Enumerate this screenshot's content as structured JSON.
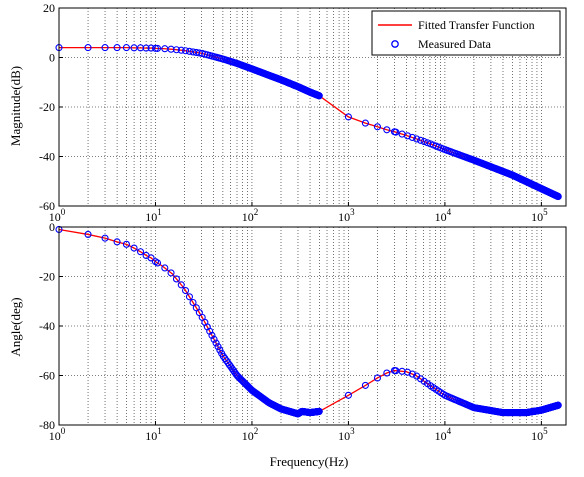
{
  "chart_data": [
    {
      "type": "line",
      "ylabel": "Magnitude(dB)",
      "xlabel": "",
      "xscale": "log",
      "xlim": [
        1,
        180000
      ],
      "ylim": [
        -60,
        20
      ],
      "yticks": [
        "20",
        "0",
        "-20",
        "-40",
        "-60"
      ],
      "xticks": [
        {
          "base": "10",
          "exp": "0"
        },
        {
          "base": "10",
          "exp": "1"
        },
        {
          "base": "10",
          "exp": "2"
        },
        {
          "base": "10",
          "exp": "3"
        },
        {
          "base": "10",
          "exp": "4"
        },
        {
          "base": "10",
          "exp": "5"
        }
      ],
      "grid": true,
      "legend_position": "top-right",
      "series": [
        {
          "name": "Fitted Transfer Function",
          "style": "line",
          "color": "#ff0000"
        },
        {
          "name": "Measured Data",
          "style": "markers",
          "color": "#0000ff"
        }
      ],
      "points": [
        [
          1,
          4
        ],
        [
          2,
          4
        ],
        [
          3,
          4
        ],
        [
          4,
          4
        ],
        [
          5,
          4
        ],
        [
          6,
          3.9
        ],
        [
          7,
          3.9
        ],
        [
          8,
          3.8
        ],
        [
          9,
          3.8
        ],
        [
          10,
          3.7
        ],
        [
          12,
          3.6
        ],
        [
          15,
          3.3
        ],
        [
          20,
          2.8
        ],
        [
          30,
          1.7
        ],
        [
          50,
          -0.6
        ],
        [
          70,
          -2.4
        ],
        [
          100,
          -4.6
        ],
        [
          150,
          -7.2
        ],
        [
          200,
          -9.0
        ],
        [
          300,
          -11.8
        ],
        [
          400,
          -14.0
        ],
        [
          500,
          -15.5
        ],
        [
          1000,
          -24
        ],
        [
          1500,
          -26.5
        ],
        [
          2000,
          -28
        ],
        [
          2500,
          -29.2
        ],
        [
          3000,
          -30
        ],
        [
          4000,
          -31.5
        ],
        [
          5000,
          -32.8
        ],
        [
          7000,
          -34.8
        ],
        [
          10000,
          -37.2
        ],
        [
          20000,
          -41.5
        ],
        [
          50000,
          -47.5
        ],
        [
          100000,
          -53
        ],
        [
          150000,
          -56.2
        ]
      ]
    },
    {
      "type": "line",
      "ylabel": "Angle(deg)",
      "xlabel": "Frequency(Hz)",
      "xscale": "log",
      "xlim": [
        1,
        180000
      ],
      "ylim": [
        -80,
        0
      ],
      "yticks": [
        "0",
        "-20",
        "-40",
        "-60",
        "-80"
      ],
      "xticks": [
        {
          "base": "10",
          "exp": "0"
        },
        {
          "base": "10",
          "exp": "1"
        },
        {
          "base": "10",
          "exp": "2"
        },
        {
          "base": "10",
          "exp": "3"
        },
        {
          "base": "10",
          "exp": "4"
        },
        {
          "base": "10",
          "exp": "5"
        }
      ],
      "grid": true,
      "series": [
        {
          "style": "line",
          "color": "#ff0000"
        },
        {
          "style": "markers",
          "color": "#0000ff"
        }
      ],
      "points": [
        [
          1,
          -1
        ],
        [
          2,
          -3
        ],
        [
          3,
          -4.5
        ],
        [
          4,
          -6
        ],
        [
          5,
          -7
        ],
        [
          6,
          -8.5
        ],
        [
          7,
          -10
        ],
        [
          8,
          -11.5
        ],
        [
          9,
          -12.5
        ],
        [
          10,
          -14
        ],
        [
          12,
          -16
        ],
        [
          15,
          -19
        ],
        [
          20,
          -25
        ],
        [
          30,
          -36
        ],
        [
          40,
          -45
        ],
        [
          50,
          -52
        ],
        [
          70,
          -60
        ],
        [
          100,
          -66
        ],
        [
          150,
          -71
        ],
        [
          200,
          -73.5
        ],
        [
          300,
          -75.5
        ],
        [
          330,
          -74.5
        ],
        [
          400,
          -75
        ],
        [
          500,
          -74.5
        ],
        [
          1000,
          -68
        ],
        [
          1500,
          -64
        ],
        [
          2000,
          -61
        ],
        [
          2500,
          -59
        ],
        [
          3000,
          -58
        ],
        [
          4000,
          -58.5
        ],
        [
          5000,
          -60
        ],
        [
          7000,
          -64
        ],
        [
          10000,
          -68
        ],
        [
          20000,
          -73
        ],
        [
          40000,
          -75
        ],
        [
          70000,
          -75
        ],
        [
          100000,
          -74
        ],
        [
          150000,
          -72
        ]
      ]
    }
  ]
}
